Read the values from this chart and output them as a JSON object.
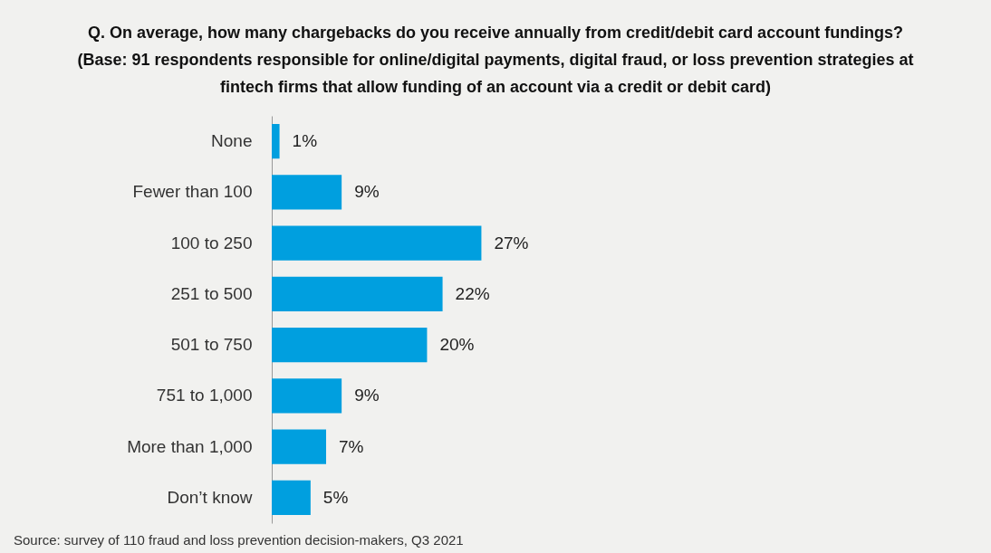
{
  "chart_data": {
    "type": "bar",
    "orientation": "horizontal",
    "title": "Q. On average, how many chargebacks do you receive annually from credit/debit card account fundings?\n(Base: 91 respondents responsible for online/digital payments, digital fraud, or loss prevention strategies at\nfintech firms that allow funding of an account via a credit or debit card)",
    "categories": [
      "None",
      "Fewer than 100",
      "100 to 250",
      "251 to 500",
      "501 to 750",
      "751 to 1,000",
      "More than 1,000",
      "Don’t know"
    ],
    "values": [
      1,
      9,
      27,
      22,
      20,
      9,
      7,
      5
    ],
    "value_labels": [
      "1%",
      "9%",
      "27%",
      "22%",
      "20%",
      "9%",
      "7%",
      "5%"
    ],
    "color": "#009fdf",
    "annotations": [
      "Source: survey of 110 fraud and loss prevention decision-makers, Q3 2021"
    ]
  }
}
